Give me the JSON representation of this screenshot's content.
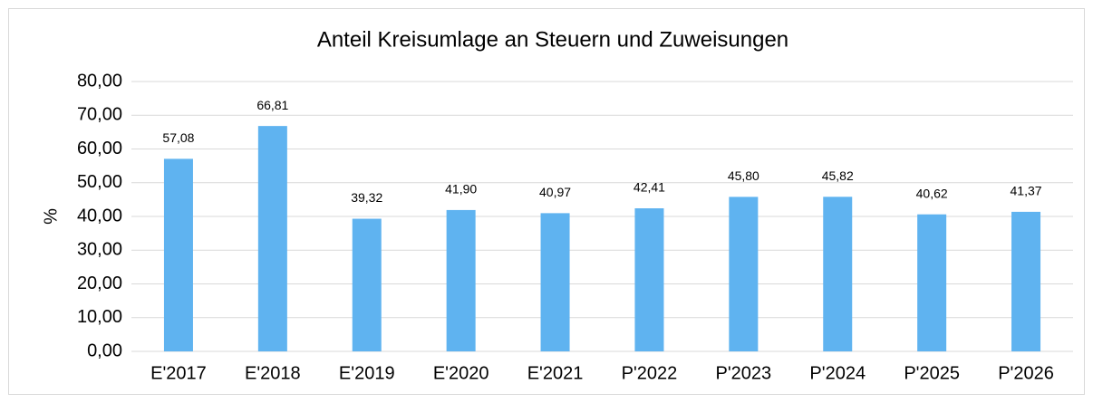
{
  "chart_data": {
    "type": "bar",
    "title": "Anteil Kreisumlage an Steuern und Zuweisungen",
    "y_label": "%",
    "categories": [
      "E'2017",
      "E'2018",
      "E'2019",
      "E'2020",
      "E'2021",
      "P'2022",
      "P'2023",
      "P'2024",
      "P'2025",
      "P'2026"
    ],
    "values": [
      57.08,
      66.81,
      39.32,
      41.9,
      40.97,
      42.41,
      45.8,
      45.82,
      40.62,
      41.37
    ],
    "value_labels": [
      "57,08",
      "66,81",
      "39,32",
      "41,90",
      "40,97",
      "42,41",
      "45,80",
      "45,82",
      "40,62",
      "41,37"
    ],
    "color": "#5fb3f0",
    "ylim": [
      0,
      80
    ],
    "yticks": [
      {
        "value": 0,
        "label": "0,00"
      },
      {
        "value": 10,
        "label": "10,00"
      },
      {
        "value": 20,
        "label": "20,00"
      },
      {
        "value": 30,
        "label": "30,00"
      },
      {
        "value": 40,
        "label": "40,00"
      },
      {
        "value": 50,
        "label": "50,00"
      },
      {
        "value": 60,
        "label": "60,00"
      },
      {
        "value": 70,
        "label": "70,00"
      },
      {
        "value": 80,
        "label": "80,00"
      }
    ],
    "grid": true
  }
}
